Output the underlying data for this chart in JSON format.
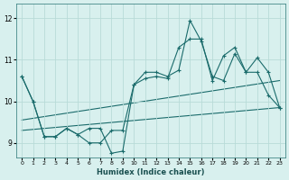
{
  "title": "",
  "xlabel": "Humidex (Indice chaleur)",
  "bg_color": "#d8f0ee",
  "grid_color": "#b8dbd8",
  "line_color": "#1a6b6b",
  "xlim": [
    -0.5,
    23.5
  ],
  "ylim": [
    8.65,
    12.35
  ],
  "xticks": [
    0,
    1,
    2,
    3,
    4,
    5,
    6,
    7,
    8,
    9,
    10,
    11,
    12,
    13,
    14,
    15,
    16,
    17,
    18,
    19,
    20,
    21,
    22,
    23
  ],
  "yticks": [
    9,
    10,
    11,
    12
  ],
  "series1_x": [
    0,
    1,
    2,
    3,
    4,
    5,
    6,
    7,
    8,
    9,
    10,
    11,
    12,
    13,
    14,
    15,
    16,
    17,
    18,
    19,
    20,
    21,
    22,
    23
  ],
  "series1_y": [
    10.6,
    10.0,
    9.15,
    9.15,
    9.35,
    9.2,
    9.35,
    9.35,
    8.75,
    8.8,
    10.4,
    10.7,
    10.7,
    10.6,
    10.75,
    11.95,
    11.45,
    10.6,
    10.5,
    11.15,
    10.7,
    10.7,
    10.15,
    9.85
  ],
  "series2_x": [
    0,
    1,
    2,
    3,
    4,
    5,
    6,
    7,
    8,
    9,
    10,
    11,
    12,
    13,
    14,
    15,
    16,
    17,
    18,
    19,
    20,
    21,
    22,
    23
  ],
  "series2_y": [
    10.6,
    10.0,
    9.15,
    9.15,
    9.35,
    9.2,
    9.0,
    9.0,
    9.3,
    9.3,
    10.4,
    10.55,
    10.6,
    10.55,
    11.3,
    11.5,
    11.5,
    10.5,
    11.1,
    11.3,
    10.7,
    11.05,
    10.7,
    9.85
  ],
  "trend1_x": [
    0,
    23
  ],
  "trend1_y": [
    9.3,
    9.85
  ],
  "trend2_x": [
    0,
    23
  ],
  "trend2_y": [
    9.55,
    10.5
  ]
}
